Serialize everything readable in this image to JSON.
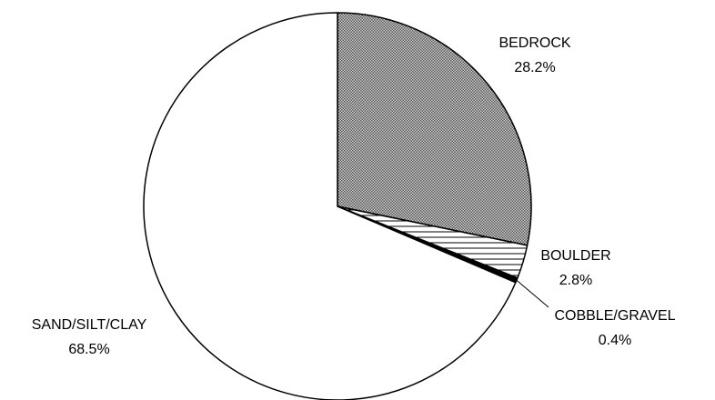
{
  "chart_data": {
    "type": "pie",
    "categories": [
      "BEDROCK",
      "BOULDER",
      "COBBLE/GRAVEL",
      "SAND/SILT/CLAY"
    ],
    "values": [
      28.2,
      2.8,
      0.4,
      68.5
    ],
    "value_labels": [
      "28.2%",
      "2.8%",
      "0.4%",
      "68.5%"
    ],
    "colors": [
      "#8a8a8a",
      "#ffffff",
      "#000000",
      "#ffffff"
    ],
    "patterns": [
      "crosshatch",
      "hlines",
      "solid",
      "solid"
    ]
  }
}
